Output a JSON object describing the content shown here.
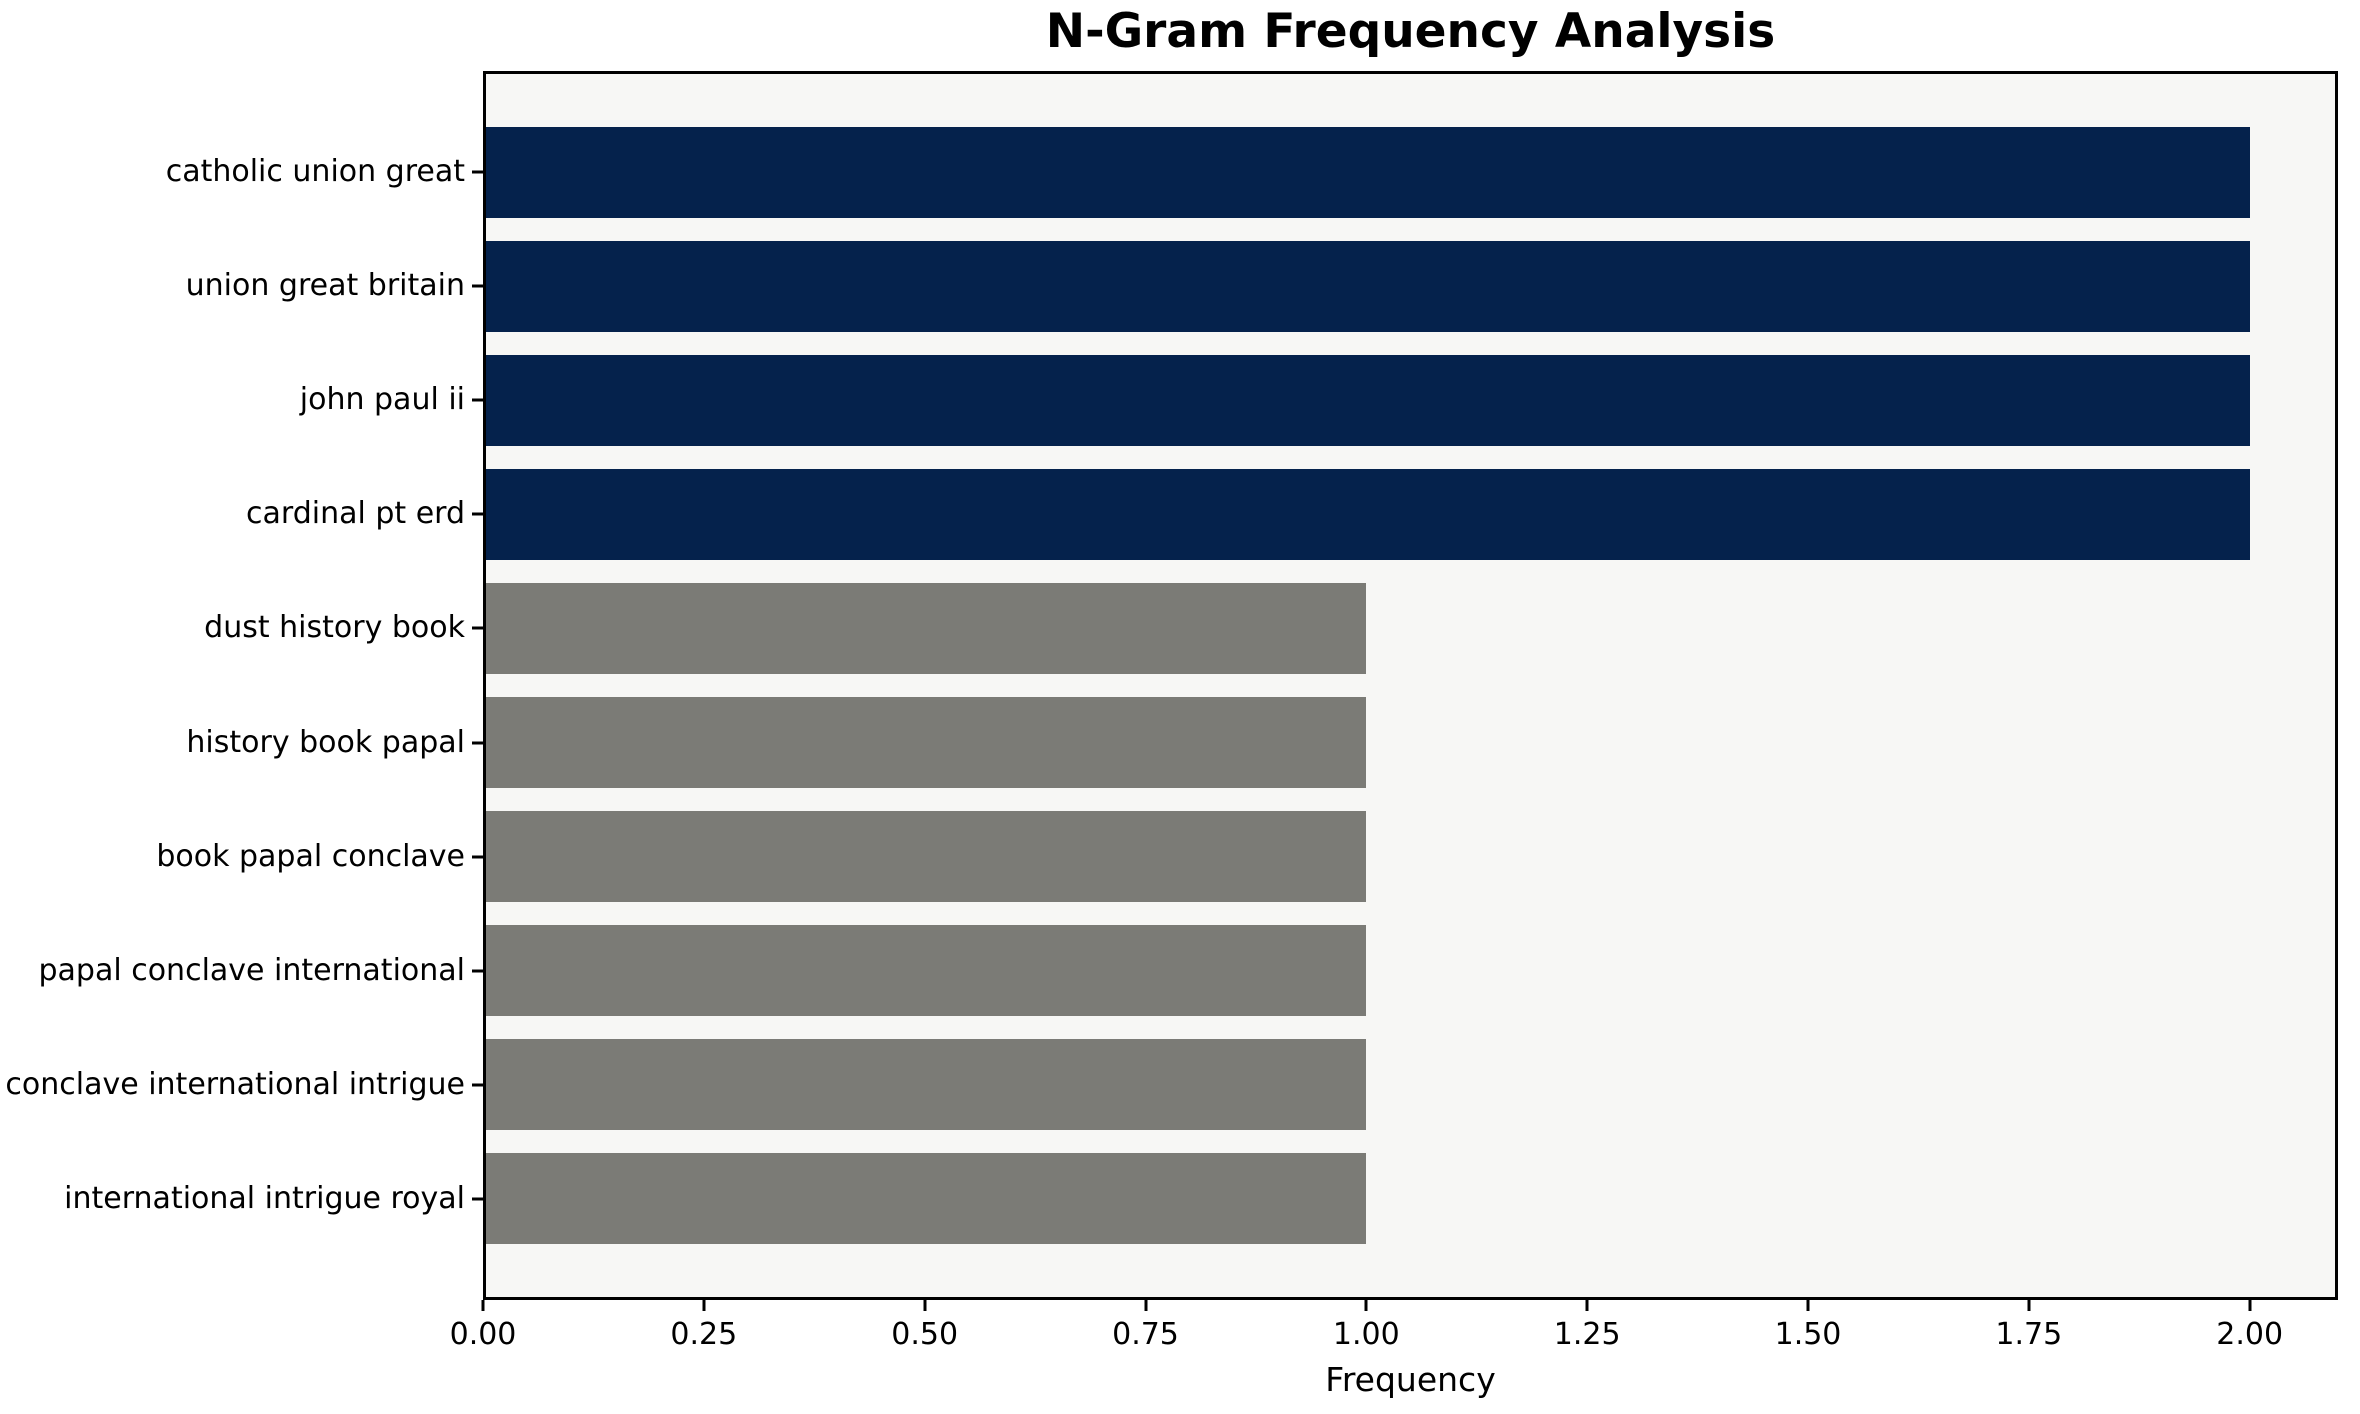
{
  "chart_data": {
    "type": "bar",
    "orientation": "horizontal",
    "title": "N-Gram Frequency Analysis",
    "xlabel": "Frequency",
    "ylabel": "",
    "categories": [
      "catholic union great",
      "union great britain",
      "john paul ii",
      "cardinal pt erd",
      "dust history book",
      "history book papal",
      "book papal conclave",
      "papal conclave international",
      "conclave international intrigue",
      "international intrigue royal"
    ],
    "values": [
      2,
      2,
      2,
      2,
      1,
      1,
      1,
      1,
      1,
      1
    ],
    "bar_colors": [
      "#05224c",
      "#05224c",
      "#05224c",
      "#05224c",
      "#7b7b76",
      "#7b7b76",
      "#7b7b76",
      "#7b7b76",
      "#7b7b76",
      "#7b7b76"
    ],
    "xlim": [
      0,
      2.1
    ],
    "x_tick_values": [
      0,
      0.25,
      0.5,
      0.75,
      1.0,
      1.25,
      1.5,
      1.75,
      2.0
    ],
    "x_tick_labels": [
      "0.00",
      "0.25",
      "0.50",
      "0.75",
      "1.00",
      "1.25",
      "1.50",
      "1.75",
      "2.00"
    ],
    "grid": false,
    "legend": "none",
    "colors": {
      "bar_high": "#05224c",
      "bar_low": "#7b7b76",
      "plot_background": "#f7f7f5",
      "figure_background": "#ffffff",
      "axis": "#000000"
    }
  }
}
